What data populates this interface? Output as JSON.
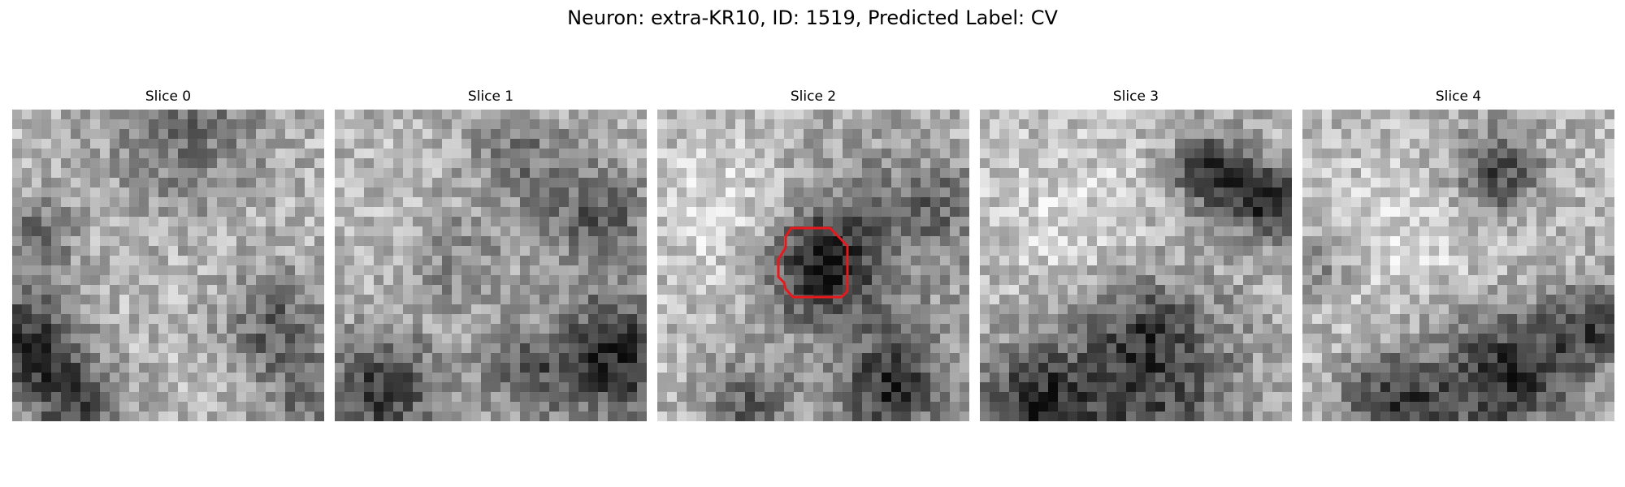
{
  "title": "Neuron: extra-KR10, ID: 1519, Predicted Label: CV",
  "colormap": "gray",
  "contour_color": "#e8181c",
  "contour_slice": 2,
  "slices": [
    {
      "label": "Slice 0"
    },
    {
      "label": "Slice 1"
    },
    {
      "label": "Slice 2"
    },
    {
      "label": "Slice 3"
    },
    {
      "label": "Slice 4"
    }
  ]
}
